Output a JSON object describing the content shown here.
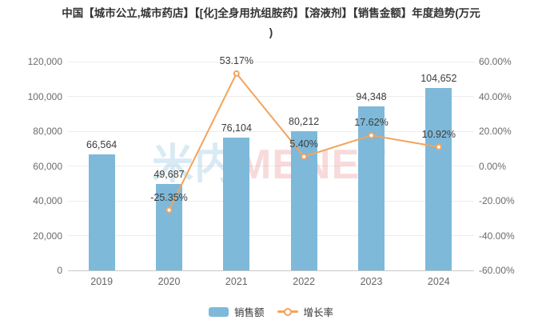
{
  "title": {
    "line1": "中国【城市公立,城市药店】【[化]全身用抗组胺药】【溶液剂】【销售金额】年度趋势(万元",
    "line2": ")"
  },
  "watermark": {
    "cjk": "米内",
    "latin": "MENET"
  },
  "colors": {
    "bar": "#7EB9D9",
    "line": "#F2A45F",
    "grid": "#ECECEC",
    "axis_line": "#C9C9C9",
    "axis_text": "#6B6B6B",
    "label_text": "#3C3C3C",
    "title_text": "#333333"
  },
  "chart_data": {
    "type": "bar",
    "subtype": "combo-bar-line-dual-axis",
    "title": "中国【城市公立,城市药店】【[化]全身用抗组胺药】【溶液剂】【销售金额】年度趋势(万元)",
    "categories": [
      "2019",
      "2020",
      "2021",
      "2022",
      "2023",
      "2024"
    ],
    "series": [
      {
        "name": "销售额",
        "type": "bar",
        "axis": "left",
        "color": "#7EB9D9",
        "values": [
          66564,
          49687,
          76104,
          80212,
          94348,
          104652
        ],
        "labels": [
          "66,564",
          "49,687",
          "76,104",
          "80,212",
          "94,348",
          "104,652"
        ]
      },
      {
        "name": "增长率",
        "type": "line",
        "axis": "right",
        "color": "#F2A45F",
        "values": [
          null,
          -25.35,
          53.17,
          5.4,
          17.62,
          10.92
        ],
        "labels": [
          null,
          "-25.35%",
          "53.17%",
          "5.40%",
          "17.62%",
          "10.92%"
        ]
      }
    ],
    "left_axis": {
      "min": 0,
      "max": 120000,
      "tick_labels": [
        "120,000",
        "100,000",
        "80,000",
        "60,000",
        "40,000",
        "20,000",
        "0"
      ]
    },
    "right_axis": {
      "min": -60,
      "max": 60,
      "tick_labels": [
        "60.00%",
        "40.00%",
        "20.00%",
        "0.00%",
        "-20.00%",
        "-40.00%",
        "-60.00%"
      ]
    },
    "x_axis": {
      "tick_labels": [
        "2019",
        "2020",
        "2021",
        "2022",
        "2023",
        "2024"
      ]
    },
    "grid": true,
    "legend_position": "bottom",
    "legend_entries": [
      "销售额",
      "增长率"
    ]
  }
}
